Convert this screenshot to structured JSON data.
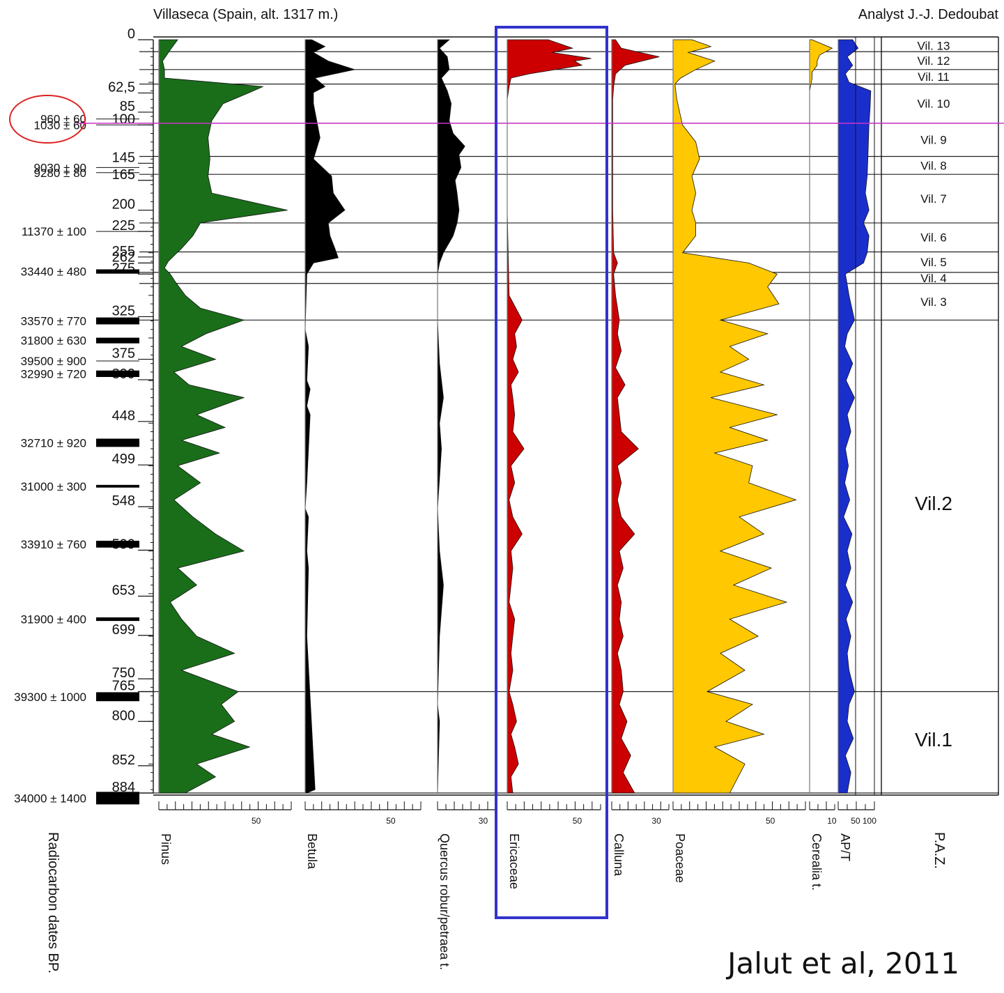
{
  "header": {
    "site": "Villaseca (Spain, alt. 1317 m.)",
    "analyst": "Analyst J.-J. Dedoubat"
  },
  "citation": "Jalut et al, 2011",
  "chart_data": {
    "type": "area",
    "title": "Villaseca (Spain, alt. 1317 m.)",
    "depth_axis": {
      "range": [
        0,
        884
      ],
      "inverted": true
    },
    "depth_labels": [
      0,
      62.5,
      85,
      100,
      145,
      165,
      200,
      225,
      255,
      262,
      275,
      325,
      375,
      399,
      448,
      499,
      548,
      599,
      653,
      699,
      750,
      765,
      800,
      852,
      884
    ],
    "radiocarbon": {
      "label": "Radiocarbon dates BP.",
      "dates": [
        {
          "text": "960 ± 60",
          "depth": 93,
          "bar": 0,
          "circled": true
        },
        {
          "text": "1030 ± 60",
          "depth": 100,
          "bar": 0,
          "circled": true
        },
        {
          "text": "9030 ± 90",
          "depth": 150,
          "bar": 0
        },
        {
          "text": "9280 ± 80",
          "depth": 156,
          "bar": 0
        },
        {
          "text": "11370 ± 100",
          "depth": 225,
          "bar": 0
        },
        {
          "text": "33440 ± 480",
          "depth": 272,
          "bar": 480
        },
        {
          "text": "33570 ± 770",
          "depth": 330,
          "bar": 770
        },
        {
          "text": "31800 ± 630",
          "depth": 353,
          "bar": 630
        },
        {
          "text": "39500 ± 900",
          "depth": 377,
          "bar": 0
        },
        {
          "text": "32990 ± 720",
          "depth": 392,
          "bar": 720
        },
        {
          "text": "32710 ± 920",
          "depth": 473,
          "bar": 920
        },
        {
          "text": "31000 ± 300",
          "depth": 524,
          "bar": 300
        },
        {
          "text": "33910 ± 760",
          "depth": 592,
          "bar": 760
        },
        {
          "text": "31900 ± 400",
          "depth": 680,
          "bar": 400
        },
        {
          "text": "39300 ± 1000",
          "depth": 771,
          "bar": 1000
        },
        {
          "text": "34000 ± 1400",
          "depth": 890,
          "bar": 1400
        }
      ]
    },
    "zone_depths": [
      0,
      14,
      35,
      52,
      98,
      137,
      158,
      215,
      249,
      273,
      286,
      329,
      765,
      884
    ],
    "zones": [
      {
        "name": "Vil. 13",
        "from": 0,
        "to": 14
      },
      {
        "name": "Vil. 12",
        "from": 14,
        "to": 35
      },
      {
        "name": "Vil. 11",
        "from": 35,
        "to": 52
      },
      {
        "name": "Vil. 10",
        "from": 52,
        "to": 98
      },
      {
        "name": "Vil. 9",
        "from": 98,
        "to": 137
      },
      {
        "name": "Vil. 8",
        "from": 137,
        "to": 158
      },
      {
        "name": "Vil. 7",
        "from": 158,
        "to": 215
      },
      {
        "name": "Vil. 6",
        "from": 215,
        "to": 249
      },
      {
        "name": "Vil. 5",
        "from": 249,
        "to": 273
      },
      {
        "name": "Vil. 4",
        "from": 273,
        "to": 286
      },
      {
        "name": "Vil. 3",
        "from": 286,
        "to": 329
      },
      {
        "name": "Vil.2",
        "from": 329,
        "to": 765
      },
      {
        "name": "Vil.1",
        "from": 765,
        "to": 884
      }
    ],
    "paz_label": "P.A.Z.",
    "highlight": {
      "taxon": "Ericaceae",
      "color": "#3333cc"
    },
    "series": [
      {
        "name": "Pinus",
        "color": "#1a6e1a",
        "scale_max": 70,
        "tick_label": "50",
        "depths": [
          0,
          12,
          25,
          35,
          45,
          55,
          62,
          75,
          95,
          115,
          140,
          160,
          180,
          200,
          215,
          230,
          245,
          260,
          268,
          275,
          285,
          300,
          315,
          329,
          345,
          360,
          375,
          390,
          405,
          420,
          440,
          455,
          470,
          485,
          500,
          520,
          540,
          560,
          580,
          600,
          620,
          640,
          660,
          680,
          700,
          720,
          740,
          765,
          780,
          800,
          815,
          830,
          850,
          865,
          884
        ],
        "values": [
          10,
          6,
          2,
          3,
          3,
          55,
          48,
          34,
          28,
          26,
          27,
          26,
          28,
          68,
          22,
          18,
          12,
          5,
          3,
          6,
          9,
          14,
          22,
          45,
          25,
          12,
          30,
          8,
          16,
          45,
          20,
          35,
          12,
          32,
          10,
          22,
          8,
          18,
          30,
          45,
          10,
          20,
          6,
          12,
          20,
          40,
          12,
          42,
          33,
          40,
          28,
          48,
          20,
          30,
          14
        ]
      },
      {
        "name": "Betula",
        "color": "#000000",
        "scale_max": 70,
        "tick_label": "50",
        "depths": [
          0,
          8,
          15,
          25,
          35,
          45,
          55,
          62,
          75,
          95,
          115,
          140,
          160,
          180,
          200,
          215,
          230,
          245,
          256,
          262,
          275,
          340,
          360,
          400,
          410,
          430,
          440,
          520,
          550,
          560,
          600,
          620,
          700,
          880,
          884
        ],
        "values": [
          4,
          12,
          5,
          14,
          30,
          6,
          12,
          5,
          5,
          7,
          9,
          5,
          16,
          17,
          24,
          14,
          15,
          18,
          20,
          5,
          1,
          0,
          2,
          1,
          3,
          1,
          3,
          1,
          0,
          2,
          1,
          2,
          1,
          6,
          1
        ]
      },
      {
        "name": "Quercus robur/petraea t.",
        "color": "#000000",
        "scale_max": 30,
        "tick_label": "30",
        "depths": [
          0,
          10,
          20,
          35,
          45,
          55,
          60,
          75,
          95,
          110,
          125,
          135,
          150,
          165,
          180,
          200,
          215,
          230,
          250,
          262,
          275,
          330,
          380,
          400,
          420,
          450,
          480,
          550,
          600,
          620,
          640,
          700,
          780,
          800,
          884
        ],
        "values": [
          6,
          1,
          5,
          6,
          2,
          4,
          5,
          7,
          6,
          8,
          14,
          11,
          12,
          9,
          10,
          11,
          10,
          8,
          3,
          1,
          0,
          0,
          1,
          2,
          3,
          1,
          2,
          0,
          1,
          2,
          3,
          1,
          0,
          1,
          0
        ]
      },
      {
        "name": "Ericaceae",
        "color": "#cc0000",
        "scale_max": 50,
        "tick_label": "50",
        "depths": [
          0,
          10,
          15,
          22,
          25,
          30,
          40,
          45,
          55,
          70,
          100,
          200,
          300,
          329,
          345,
          360,
          375,
          390,
          405,
          420,
          440,
          460,
          480,
          500,
          520,
          540,
          560,
          580,
          600,
          620,
          640,
          660,
          680,
          700,
          720,
          740,
          765,
          780,
          800,
          815,
          830,
          850,
          865,
          884
        ],
        "values": [
          22,
          35,
          24,
          45,
          36,
          40,
          12,
          2,
          1,
          0,
          0,
          0,
          1,
          8,
          4,
          5,
          3,
          6,
          2,
          3,
          4,
          3,
          9,
          2,
          4,
          1,
          3,
          8,
          2,
          3,
          2,
          1,
          4,
          3,
          2,
          3,
          1,
          3,
          5,
          2,
          4,
          6,
          2,
          3
        ]
      },
      {
        "name": "Calluna",
        "color": "#cc0000",
        "scale_max": 30,
        "tick_label": "30",
        "depths": [
          0,
          10,
          20,
          30,
          40,
          55,
          70,
          100,
          200,
          250,
          262,
          275,
          300,
          329,
          345,
          365,
          385,
          405,
          420,
          440,
          460,
          480,
          500,
          520,
          540,
          560,
          580,
          600,
          620,
          640,
          660,
          680,
          700,
          720,
          740,
          765,
          780,
          800,
          820,
          840,
          860,
          884
        ],
        "values": [
          2,
          5,
          25,
          7,
          2,
          1,
          0.5,
          0.5,
          0.5,
          1,
          3,
          1,
          2,
          4,
          3,
          5,
          2,
          7,
          3,
          4,
          5,
          14,
          3,
          5,
          3,
          5,
          12,
          4,
          6,
          3,
          5,
          4,
          6,
          3,
          5,
          6,
          4,
          8,
          5,
          10,
          6,
          12
        ]
      },
      {
        "name": "Poaceae",
        "color": "#ffc800",
        "scale_max": 70,
        "tick_label": "50",
        "depths": [
          0,
          8,
          15,
          25,
          35,
          45,
          52,
          70,
          100,
          120,
          140,
          160,
          180,
          200,
          215,
          230,
          250,
          262,
          275,
          290,
          310,
          329,
          345,
          360,
          375,
          390,
          405,
          420,
          440,
          455,
          470,
          485,
          500,
          520,
          540,
          560,
          580,
          600,
          620,
          640,
          660,
          680,
          700,
          720,
          740,
          765,
          780,
          800,
          815,
          830,
          850,
          884
        ],
        "values": [
          10,
          20,
          8,
          22,
          12,
          4,
          1,
          2,
          5,
          12,
          14,
          10,
          12,
          10,
          12,
          12,
          5,
          40,
          55,
          50,
          56,
          25,
          50,
          30,
          40,
          25,
          48,
          20,
          55,
          30,
          50,
          22,
          42,
          40,
          65,
          35,
          48,
          25,
          52,
          32,
          60,
          30,
          45,
          25,
          38,
          18,
          42,
          28,
          48,
          22,
          38,
          30
        ]
      },
      {
        "name": "Cerealia t.",
        "color": "#ffc800",
        "scale_max": 10,
        "tick_label": "10",
        "depths": [
          0,
          5,
          10,
          18,
          25,
          30,
          38,
          45,
          60,
          100,
          300,
          884
        ],
        "values": [
          1,
          5,
          9,
          4,
          3,
          3,
          1,
          1,
          0,
          0,
          0,
          0
        ]
      },
      {
        "name": "AP/T",
        "color": "#1a2ecc",
        "scale_max": 100,
        "tick_label": "50 100",
        "depths": [
          0,
          10,
          20,
          30,
          40,
          50,
          60,
          80,
          100,
          140,
          160,
          180,
          200,
          215,
          230,
          250,
          262,
          275,
          300,
          329,
          345,
          360,
          380,
          400,
          420,
          440,
          460,
          480,
          500,
          520,
          540,
          560,
          580,
          600,
          620,
          640,
          660,
          680,
          700,
          720,
          740,
          765,
          780,
          800,
          820,
          840,
          860,
          884
        ],
        "values": [
          40,
          55,
          25,
          40,
          20,
          30,
          90,
          88,
          85,
          82,
          80,
          75,
          85,
          70,
          85,
          80,
          70,
          20,
          30,
          45,
          25,
          18,
          40,
          22,
          45,
          25,
          35,
          20,
          28,
          18,
          32,
          15,
          38,
          25,
          35,
          20,
          40,
          22,
          35,
          25,
          30,
          45,
          30,
          25,
          42,
          20,
          35,
          25
        ]
      }
    ]
  }
}
